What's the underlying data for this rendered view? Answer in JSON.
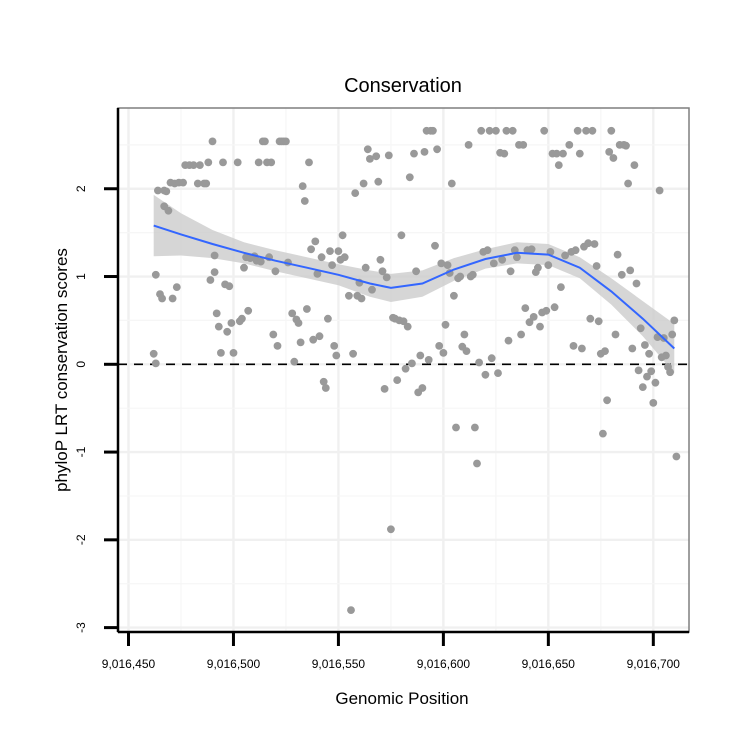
{
  "chart_data": {
    "type": "scatter",
    "title": "Conservation",
    "xlabel": "Genomic Position",
    "ylabel": "phyloP LRT conservation scores",
    "xlim": [
      9016445,
      9016717
    ],
    "ylim": [
      -3.05,
      2.92
    ],
    "x_ticks": [
      9016450,
      9016500,
      9016550,
      9016600,
      9016650,
      9016700
    ],
    "x_tick_labels": [
      "9,016,450",
      "9,016,500",
      "9,016,550",
      "9,016,600",
      "9,016,650",
      "9,016,700"
    ],
    "y_ticks": [
      2,
      1,
      0,
      -1,
      -2,
      -3
    ],
    "y_tick_labels": [
      "2",
      "1",
      "0",
      "-1",
      "-2",
      "-3"
    ],
    "grid": true,
    "reference_line": {
      "y": 0,
      "style": "dashed"
    },
    "colors": {
      "points": "#999999",
      "smooth_line": "#3366ff",
      "band": "#cccccc",
      "panel_border": "#7f7f7f"
    },
    "points": [
      [
        9016462,
        0.12
      ],
      [
        9016463,
        1.02
      ],
      [
        9016463,
        0.01
      ],
      [
        9016464,
        1.98
      ],
      [
        9016465,
        0.8
      ],
      [
        9016466,
        0.75
      ],
      [
        9016467,
        1.98
      ],
      [
        9016467,
        1.8
      ],
      [
        9016468,
        1.97
      ],
      [
        9016469,
        1.75
      ],
      [
        9016470,
        2.07
      ],
      [
        9016471,
        0.75
      ],
      [
        9016472,
        2.06
      ],
      [
        9016473,
        0.88
      ],
      [
        9016474,
        2.07
      ],
      [
        9016476,
        2.07
      ],
      [
        9016477,
        2.27
      ],
      [
        9016479,
        2.27
      ],
      [
        9016481,
        2.27
      ],
      [
        9016483,
        2.06
      ],
      [
        9016484,
        2.27
      ],
      [
        9016486,
        2.06
      ],
      [
        9016487,
        2.06
      ],
      [
        9016488,
        2.3
      ],
      [
        9016489,
        0.96
      ],
      [
        9016490,
        2.54
      ],
      [
        9016491,
        1.24
      ],
      [
        9016491,
        1.05
      ],
      [
        9016492,
        0.58
      ],
      [
        9016493,
        0.43
      ],
      [
        9016494,
        0.13
      ],
      [
        9016495,
        2.3
      ],
      [
        9016496,
        0.91
      ],
      [
        9016497,
        0.37
      ],
      [
        9016498,
        0.89
      ],
      [
        9016499,
        0.47
      ],
      [
        9016500,
        0.13
      ],
      [
        9016502,
        2.3
      ],
      [
        9016503,
        0.49
      ],
      [
        9016504,
        0.52
      ],
      [
        9016505,
        1.1
      ],
      [
        9016506,
        1.22
      ],
      [
        9016507,
        0.61
      ],
      [
        9016508,
        1.21
      ],
      [
        9016510,
        1.23
      ],
      [
        9016511,
        1.18
      ],
      [
        9016512,
        2.3
      ],
      [
        9016513,
        1.17
      ],
      [
        9016514,
        2.54
      ],
      [
        9016515,
        2.54
      ],
      [
        9016516,
        2.3
      ],
      [
        9016517,
        1.22
      ],
      [
        9016518,
        2.3
      ],
      [
        9016519,
        0.34
      ],
      [
        9016520,
        1.06
      ],
      [
        9016521,
        0.21
      ],
      [
        9016522,
        2.54
      ],
      [
        9016523,
        2.54
      ],
      [
        9016524,
        2.54
      ],
      [
        9016525,
        2.54
      ],
      [
        9016526,
        1.16
      ],
      [
        9016528,
        0.58
      ],
      [
        9016529,
        0.03
      ],
      [
        9016530,
        0.51
      ],
      [
        9016531,
        0.47
      ],
      [
        9016532,
        0.25
      ],
      [
        9016533,
        2.03
      ],
      [
        9016534,
        1.86
      ],
      [
        9016535,
        0.63
      ],
      [
        9016536,
        2.3
      ],
      [
        9016537,
        1.31
      ],
      [
        9016538,
        0.28
      ],
      [
        9016539,
        1.4
      ],
      [
        9016540,
        1.03
      ],
      [
        9016541,
        0.32
      ],
      [
        9016542,
        1.22
      ],
      [
        9016543,
        -0.2
      ],
      [
        9016544,
        -0.27
      ],
      [
        9016545,
        0.52
      ],
      [
        9016546,
        1.29
      ],
      [
        9016547,
        1.13
      ],
      [
        9016548,
        0.21
      ],
      [
        9016549,
        0.1
      ],
      [
        9016550,
        1.29
      ],
      [
        9016551,
        1.19
      ],
      [
        9016552,
        1.47
      ],
      [
        9016553,
        1.22
      ],
      [
        9016555,
        0.78
      ],
      [
        9016556,
        -2.8
      ],
      [
        9016557,
        0.12
      ],
      [
        9016558,
        1.95
      ],
      [
        9016559,
        0.78
      ],
      [
        9016560,
        0.93
      ],
      [
        9016561,
        0.75
      ],
      [
        9016562,
        2.06
      ],
      [
        9016563,
        1.1
      ],
      [
        9016564,
        2.45
      ],
      [
        9016565,
        2.34
      ],
      [
        9016566,
        0.85
      ],
      [
        9016568,
        2.37
      ],
      [
        9016569,
        2.08
      ],
      [
        9016570,
        1.19
      ],
      [
        9016571,
        1.06
      ],
      [
        9016572,
        -0.28
      ],
      [
        9016573,
        0.99
      ],
      [
        9016574,
        2.38
      ],
      [
        9016575,
        -1.88
      ],
      [
        9016576,
        0.53
      ],
      [
        9016577,
        0.52
      ],
      [
        9016578,
        -0.18
      ],
      [
        9016579,
        0.5
      ],
      [
        9016580,
        1.47
      ],
      [
        9016581,
        0.49
      ],
      [
        9016582,
        -0.05
      ],
      [
        9016583,
        0.43
      ],
      [
        9016584,
        2.13
      ],
      [
        9016585,
        0.01
      ],
      [
        9016586,
        2.4
      ],
      [
        9016587,
        1.06
      ],
      [
        9016588,
        -0.32
      ],
      [
        9016589,
        0.1
      ],
      [
        9016590,
        -0.27
      ],
      [
        9016591,
        2.42
      ],
      [
        9016592,
        2.66
      ],
      [
        9016593,
        0.05
      ],
      [
        9016594,
        2.66
      ],
      [
        9016595,
        2.66
      ],
      [
        9016596,
        1.35
      ],
      [
        9016597,
        2.45
      ],
      [
        9016598,
        0.21
      ],
      [
        9016599,
        1.15
      ],
      [
        9016600,
        0.13
      ],
      [
        9016601,
        0.45
      ],
      [
        9016602,
        1.13
      ],
      [
        9016603,
        1.04
      ],
      [
        9016604,
        2.06
      ],
      [
        9016605,
        0.78
      ],
      [
        9016606,
        -0.72
      ],
      [
        9016607,
        0.98
      ],
      [
        9016608,
        1.0
      ],
      [
        9016609,
        0.2
      ],
      [
        9016610,
        0.34
      ],
      [
        9016611,
        0.15
      ],
      [
        9016612,
        2.5
      ],
      [
        9016613,
        1.0
      ],
      [
        9016614,
        1.02
      ],
      [
        9016615,
        -0.72
      ],
      [
        9016616,
        -1.13
      ],
      [
        9016617,
        0.02
      ],
      [
        9016618,
        2.66
      ],
      [
        9016619,
        1.28
      ],
      [
        9016620,
        -0.12
      ],
      [
        9016621,
        1.3
      ],
      [
        9016622,
        2.66
      ],
      [
        9016623,
        0.07
      ],
      [
        9016624,
        1.15
      ],
      [
        9016625,
        2.66
      ],
      [
        9016626,
        -0.1
      ],
      [
        9016627,
        2.41
      ],
      [
        9016628,
        1.19
      ],
      [
        9016629,
        2.4
      ],
      [
        9016630,
        2.66
      ],
      [
        9016631,
        0.27
      ],
      [
        9016632,
        1.06
      ],
      [
        9016633,
        2.66
      ],
      [
        9016634,
        1.3
      ],
      [
        9016635,
        1.22
      ],
      [
        9016636,
        2.5
      ],
      [
        9016637,
        0.34
      ],
      [
        9016638,
        2.5
      ],
      [
        9016639,
        0.64
      ],
      [
        9016640,
        1.3
      ],
      [
        9016641,
        0.48
      ],
      [
        9016642,
        1.31
      ],
      [
        9016643,
        0.54
      ],
      [
        9016644,
        1.05
      ],
      [
        9016645,
        1.1
      ],
      [
        9016646,
        0.43
      ],
      [
        9016647,
        0.59
      ],
      [
        9016648,
        2.66
      ],
      [
        9016649,
        0.61
      ],
      [
        9016650,
        1.13
      ],
      [
        9016651,
        1.28
      ],
      [
        9016652,
        2.4
      ],
      [
        9016653,
        0.65
      ],
      [
        9016654,
        2.4
      ],
      [
        9016655,
        2.27
      ],
      [
        9016656,
        0.88
      ],
      [
        9016657,
        2.4
      ],
      [
        9016658,
        1.24
      ],
      [
        9016660,
        2.5
      ],
      [
        9016661,
        1.28
      ],
      [
        9016662,
        0.21
      ],
      [
        9016663,
        1.3
      ],
      [
        9016664,
        2.66
      ],
      [
        9016665,
        2.4
      ],
      [
        9016666,
        0.18
      ],
      [
        9016667,
        1.34
      ],
      [
        9016668,
        2.66
      ],
      [
        9016669,
        1.38
      ],
      [
        9016670,
        0.52
      ],
      [
        9016671,
        2.66
      ],
      [
        9016672,
        1.37
      ],
      [
        9016673,
        1.12
      ],
      [
        9016674,
        0.49
      ],
      [
        9016675,
        0.12
      ],
      [
        9016676,
        -0.79
      ],
      [
        9016677,
        0.15
      ],
      [
        9016678,
        -0.41
      ],
      [
        9016679,
        2.42
      ],
      [
        9016680,
        2.66
      ],
      [
        9016681,
        2.35
      ],
      [
        9016682,
        0.34
      ],
      [
        9016683,
        1.25
      ],
      [
        9016684,
        2.5
      ],
      [
        9016685,
        1.02
      ],
      [
        9016686,
        2.5
      ],
      [
        9016687,
        2.49
      ],
      [
        9016688,
        2.06
      ],
      [
        9016689,
        1.07
      ],
      [
        9016690,
        0.18
      ],
      [
        9016691,
        2.27
      ],
      [
        9016692,
        0.92
      ],
      [
        9016693,
        -0.07
      ],
      [
        9016694,
        0.41
      ],
      [
        9016695,
        -0.26
      ],
      [
        9016696,
        0.22
      ],
      [
        9016697,
        -0.14
      ],
      [
        9016698,
        0.12
      ],
      [
        9016699,
        -0.08
      ],
      [
        9016700,
        -0.44
      ],
      [
        9016701,
        -0.21
      ],
      [
        9016702,
        0.31
      ],
      [
        9016703,
        1.98
      ],
      [
        9016704,
        0.08
      ],
      [
        9016705,
        0.3
      ],
      [
        9016706,
        0.1
      ],
      [
        9016707,
        -0.03
      ],
      [
        9016708,
        -0.09
      ],
      [
        9016709,
        0.34
      ],
      [
        9016710,
        0.5
      ],
      [
        9016711,
        -1.05
      ]
    ],
    "smooth": {
      "x": [
        9016462,
        9016475,
        9016490,
        9016505,
        9016520,
        9016535,
        9016550,
        9016565,
        9016575,
        9016590,
        9016605,
        9016620,
        9016635,
        9016650,
        9016665,
        9016680,
        9016695,
        9016710
      ],
      "y": [
        1.58,
        1.48,
        1.37,
        1.27,
        1.18,
        1.1,
        1.02,
        0.92,
        0.87,
        0.92,
        1.08,
        1.2,
        1.27,
        1.25,
        1.1,
        0.83,
        0.52,
        0.18
      ],
      "upper": [
        1.93,
        1.72,
        1.53,
        1.39,
        1.3,
        1.22,
        1.14,
        1.07,
        1.03,
        1.07,
        1.21,
        1.31,
        1.39,
        1.37,
        1.22,
        0.98,
        0.72,
        0.46
      ],
      "lower": [
        1.23,
        1.24,
        1.21,
        1.15,
        1.06,
        0.98,
        0.9,
        0.77,
        0.71,
        0.77,
        0.95,
        1.09,
        1.15,
        1.13,
        0.98,
        0.68,
        0.32,
        -0.1
      ]
    }
  }
}
